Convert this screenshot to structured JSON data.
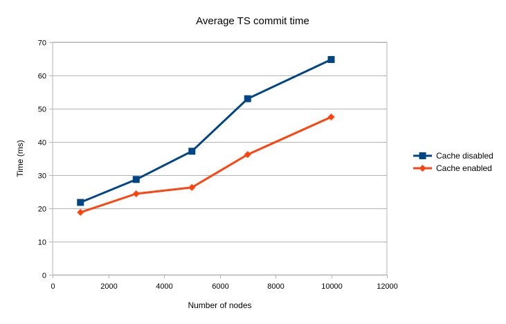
{
  "chart_data": {
    "type": "line",
    "title": "Average TS commit time",
    "xlabel": "Number of nodes",
    "ylabel": "Time (ms)",
    "xlim": [
      0,
      12000
    ],
    "ylim": [
      0,
      70
    ],
    "x_ticks": [
      0,
      2000,
      4000,
      6000,
      8000,
      10000,
      12000
    ],
    "y_ticks": [
      0,
      10,
      20,
      30,
      40,
      50,
      60,
      70
    ],
    "grid": "horizontal",
    "legend_position": "right",
    "series": [
      {
        "name": "Cache disabled",
        "color": "#004586",
        "marker": "square",
        "x": [
          1000,
          3000,
          5000,
          7000,
          10000
        ],
        "y": [
          21.8,
          28.7,
          37.2,
          53.0,
          64.8
        ]
      },
      {
        "name": "Cache enabled",
        "color": "#ff420e",
        "marker": "diamond",
        "x": [
          1000,
          3000,
          5000,
          7000,
          10000
        ],
        "y": [
          18.8,
          24.4,
          26.3,
          36.2,
          47.5
        ]
      }
    ]
  }
}
